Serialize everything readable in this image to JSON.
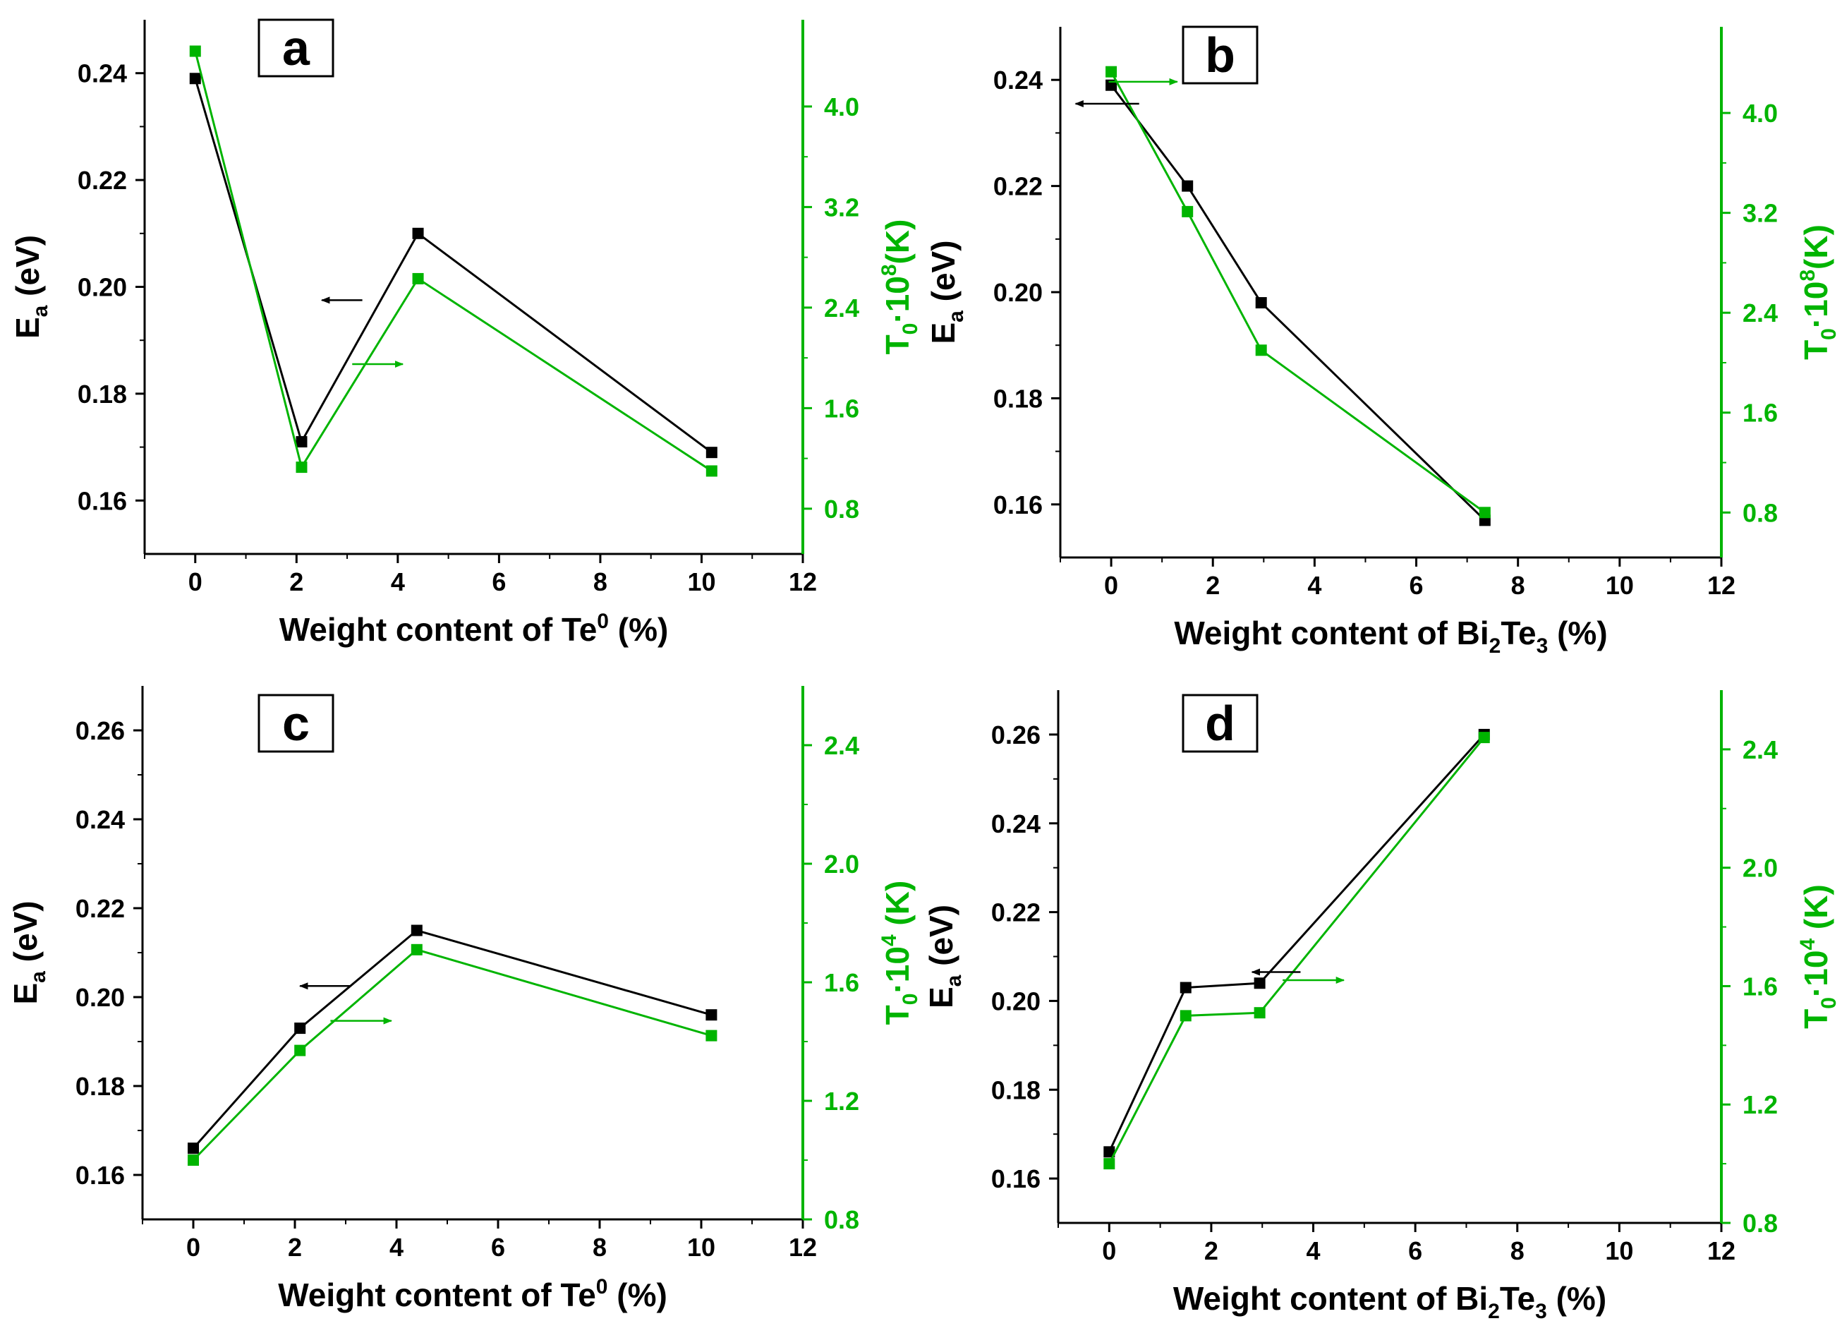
{
  "colors": {
    "ea": "#000000",
    "t0": "#00b400",
    "axis": "#000000",
    "panel_box": "#000000"
  },
  "chart_data": [
    {
      "type": "line",
      "panel_label": "a",
      "xlabel": {
        "main": "Weight content of Te",
        "sup": "0",
        "tail": " (%)"
      },
      "ylabel": {
        "main": "E",
        "sub": "a",
        "tail": " (eV)"
      },
      "y2label": {
        "main": "T",
        "sub": "0",
        "mid": "·10",
        "sup": "8",
        "tail": "(K)"
      },
      "xlim": [
        -1,
        12
      ],
      "xticks": [
        0,
        2,
        4,
        6,
        8,
        10,
        12
      ],
      "ylim": [
        0.15,
        0.25
      ],
      "yticks": [
        0.16,
        0.18,
        0.2,
        0.22,
        0.24
      ],
      "y2lim": [
        0.44,
        4.69
      ],
      "y2ticks": [
        0.8,
        1.6,
        2.4,
        3.2,
        4.0
      ],
      "series": [
        {
          "name": "Ea",
          "axis": "left",
          "x": [
            0,
            2.1,
            4.4,
            10.2
          ],
          "y": [
            0.239,
            0.171,
            0.21,
            0.169
          ]
        },
        {
          "name": "T0",
          "axis": "right",
          "x": [
            0,
            2.1,
            4.4,
            10.2
          ],
          "y": [
            4.44,
            1.13,
            2.63,
            1.1
          ]
        }
      ],
      "arrows": [
        {
          "axis": "left",
          "x1": 3.3,
          "y1": 0.1975,
          "x2": 2.5,
          "y2": 0.1975
        },
        {
          "axis": "right",
          "x1": 3.1,
          "y1": 1.95,
          "x2": 4.1,
          "y2": 1.95
        }
      ],
      "tick_format": {
        "y": "0.00",
        "y2": "0.0"
      }
    },
    {
      "type": "line",
      "panel_label": "b",
      "xlabel": {
        "main": "Weight content of Bi",
        "sub": "2",
        "mid": "Te",
        "sub2": "3",
        "tail": " (%)"
      },
      "ylabel": {
        "main": "E",
        "sub": "a",
        "tail": " (eV)"
      },
      "y2label": {
        "main": "T",
        "sub": "0",
        "mid": "·10",
        "sup": "8",
        "tail": "(K)"
      },
      "xlim": [
        -1,
        12
      ],
      "xticks": [
        0,
        2,
        4,
        6,
        8,
        10,
        12
      ],
      "ylim": [
        0.15,
        0.25
      ],
      "yticks": [
        0.16,
        0.18,
        0.2,
        0.22,
        0.24
      ],
      "y2lim": [
        0.44,
        4.69
      ],
      "y2ticks": [
        0.8,
        1.6,
        2.4,
        3.2,
        4.0
      ],
      "series": [
        {
          "name": "Ea",
          "axis": "left",
          "x": [
            0,
            1.5,
            2.95,
            7.35
          ],
          "y": [
            0.239,
            0.22,
            0.198,
            0.157
          ]
        },
        {
          "name": "T0",
          "axis": "right",
          "x": [
            0,
            1.5,
            2.95,
            7.35
          ],
          "y": [
            4.33,
            3.21,
            2.1,
            0.8
          ]
        }
      ],
      "arrows": [
        {
          "axis": "left",
          "x1": 0.55,
          "y1": 0.2355,
          "x2": -0.7,
          "y2": 0.2355
        },
        {
          "axis": "right",
          "x1": -0.05,
          "y1": 4.25,
          "x2": 1.3,
          "y2": 4.25
        }
      ],
      "tick_format": {
        "y": "0.00",
        "y2": "0.0"
      }
    },
    {
      "type": "line",
      "panel_label": "c",
      "xlabel": {
        "main": "Weight content of Te",
        "sup": "0",
        "tail": " (%)"
      },
      "ylabel": {
        "main": "E",
        "sub": "a",
        "tail": " (eV)"
      },
      "y2label": {
        "main": "T",
        "sub": "0",
        "mid": "·10",
        "sup": "4",
        "tail": " (K)"
      },
      "xlim": [
        -1,
        12
      ],
      "xticks": [
        0,
        2,
        4,
        6,
        8,
        10,
        12
      ],
      "ylim": [
        0.15,
        0.27
      ],
      "yticks": [
        0.16,
        0.18,
        0.2,
        0.22,
        0.24,
        0.26
      ],
      "y2lim": [
        0.8,
        2.6
      ],
      "y2ticks": [
        0.8,
        1.2,
        1.6,
        2.0,
        2.4
      ],
      "series": [
        {
          "name": "Ea",
          "axis": "left",
          "x": [
            0,
            2.1,
            4.4,
            10.2
          ],
          "y": [
            0.166,
            0.193,
            0.215,
            0.196
          ]
        },
        {
          "name": "T0",
          "axis": "right",
          "x": [
            0,
            2.1,
            4.4,
            10.2
          ],
          "y": [
            1.0,
            1.37,
            1.71,
            1.42
          ]
        }
      ],
      "arrows": [
        {
          "axis": "left",
          "x1": 3.1,
          "y1": 0.2025,
          "x2": 2.1,
          "y2": 0.2025
        },
        {
          "axis": "right",
          "x1": 2.7,
          "y1": 1.47,
          "x2": 3.9,
          "y2": 1.47
        }
      ],
      "tick_format": {
        "y": "0.00",
        "y2": "0.0"
      }
    },
    {
      "type": "line",
      "panel_label": "d",
      "xlabel": {
        "main": "Weight content of Bi",
        "sub": "2",
        "mid": "Te",
        "sub2": "3",
        "tail": " (%)"
      },
      "ylabel": {
        "main": "E",
        "sub": "a",
        "tail": " (eV)"
      },
      "y2label": {
        "main": "T",
        "sub": "0",
        "mid": "·10",
        "sup": "4",
        "tail": " (K)"
      },
      "xlim": [
        -1,
        12
      ],
      "xticks": [
        0,
        2,
        4,
        6,
        8,
        10,
        12
      ],
      "ylim": [
        0.15,
        0.27
      ],
      "yticks": [
        0.16,
        0.18,
        0.2,
        0.22,
        0.24,
        0.26
      ],
      "y2lim": [
        0.8,
        2.6
      ],
      "y2ticks": [
        0.8,
        1.2,
        1.6,
        2.0,
        2.4
      ],
      "series": [
        {
          "name": "Ea",
          "axis": "left",
          "x": [
            0,
            1.5,
            2.95,
            7.35
          ],
          "y": [
            0.166,
            0.203,
            0.204,
            0.26
          ]
        },
        {
          "name": "T0",
          "axis": "right",
          "x": [
            0,
            1.5,
            2.95,
            7.35
          ],
          "y": [
            1.0,
            1.5,
            1.51,
            2.44
          ]
        }
      ],
      "arrows": [
        {
          "axis": "left",
          "x1": 3.75,
          "y1": 0.2065,
          "x2": 2.8,
          "y2": 0.2065
        },
        {
          "axis": "right",
          "x1": 3.4,
          "y1": 1.62,
          "x2": 4.6,
          "y2": 1.62
        }
      ],
      "tick_format": {
        "y": "0.00",
        "y2": "0.0"
      }
    }
  ]
}
